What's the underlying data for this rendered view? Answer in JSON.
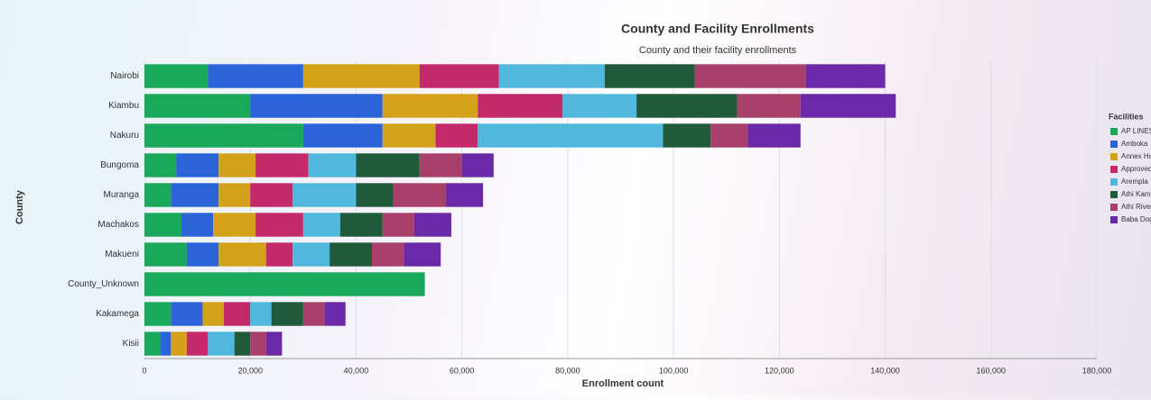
{
  "chart_data": {
    "type": "bar",
    "orientation": "horizontal",
    "stacked": true,
    "title": "County and Facility Enrollments",
    "subtitle": "County and their facility enrollments",
    "x_label": "Enrollment count",
    "y_label": "County",
    "legend_title": "Facilities",
    "legend": "right",
    "grid": true,
    "categories": [
      "Nairobi",
      "Kiambu",
      "Nakuru",
      "Bungoma",
      "Muranga",
      "Machakos",
      "Makueni",
      "County_Unknown",
      "Kakamega",
      "Kisii"
    ],
    "xlim": [
      0,
      180000
    ],
    "xticks": [
      0,
      {
        "value": 20000,
        "label": "20,000"
      },
      {
        "value": 40000,
        "label": "40,000"
      },
      {
        "value": 60000,
        "label": "60,000"
      },
      {
        "value": 80000,
        "label": "80,000"
      },
      {
        "value": 100000,
        "label": "100,000"
      },
      {
        "value": 120000,
        "label": "120,000"
      },
      {
        "value": 140000,
        "label": "140,000"
      },
      {
        "value": 160000,
        "label": "160,000"
      },
      {
        "value": 180000,
        "label": "180,000"
      }
    ],
    "series": [
      {
        "name": "AP LINES",
        "color": "#1aa85a",
        "values": [
          12000,
          20000,
          30000,
          6000,
          5000,
          7000,
          8000,
          53000,
          5000,
          3000
        ]
      },
      {
        "name": "Amboka",
        "color": "#2b63d9",
        "values": [
          18000,
          25000,
          15000,
          8000,
          9000,
          6000,
          6000,
          0,
          6000,
          2000
        ]
      },
      {
        "name": "Annex Ho",
        "color": "#d4a21a",
        "values": [
          22000,
          18000,
          10000,
          7000,
          6000,
          8000,
          9000,
          0,
          4000,
          3000
        ]
      },
      {
        "name": "Approved",
        "color": "#c42a6a",
        "values": [
          15000,
          16000,
          8000,
          10000,
          8000,
          9000,
          5000,
          0,
          5000,
          4000
        ]
      },
      {
        "name": "Arempla",
        "color": "#4fb8dc",
        "values": [
          20000,
          14000,
          35000,
          9000,
          12000,
          7000,
          7000,
          0,
          4000,
          5000
        ]
      },
      {
        "name": "Athi Kam",
        "color": "#1f5a3a",
        "values": [
          17000,
          19000,
          9000,
          12000,
          7000,
          8000,
          8000,
          0,
          6000,
          3000
        ]
      },
      {
        "name": "Athi River",
        "color": "#a8406a",
        "values": [
          21000,
          12000,
          7000,
          8000,
          10000,
          6000,
          6000,
          0,
          4000,
          3000
        ]
      },
      {
        "name": "Baba Dog",
        "color": "#6a2aa8",
        "values": [
          15000,
          18000,
          10000,
          6000,
          7000,
          7000,
          7000,
          0,
          4000,
          3000
        ]
      }
    ]
  }
}
